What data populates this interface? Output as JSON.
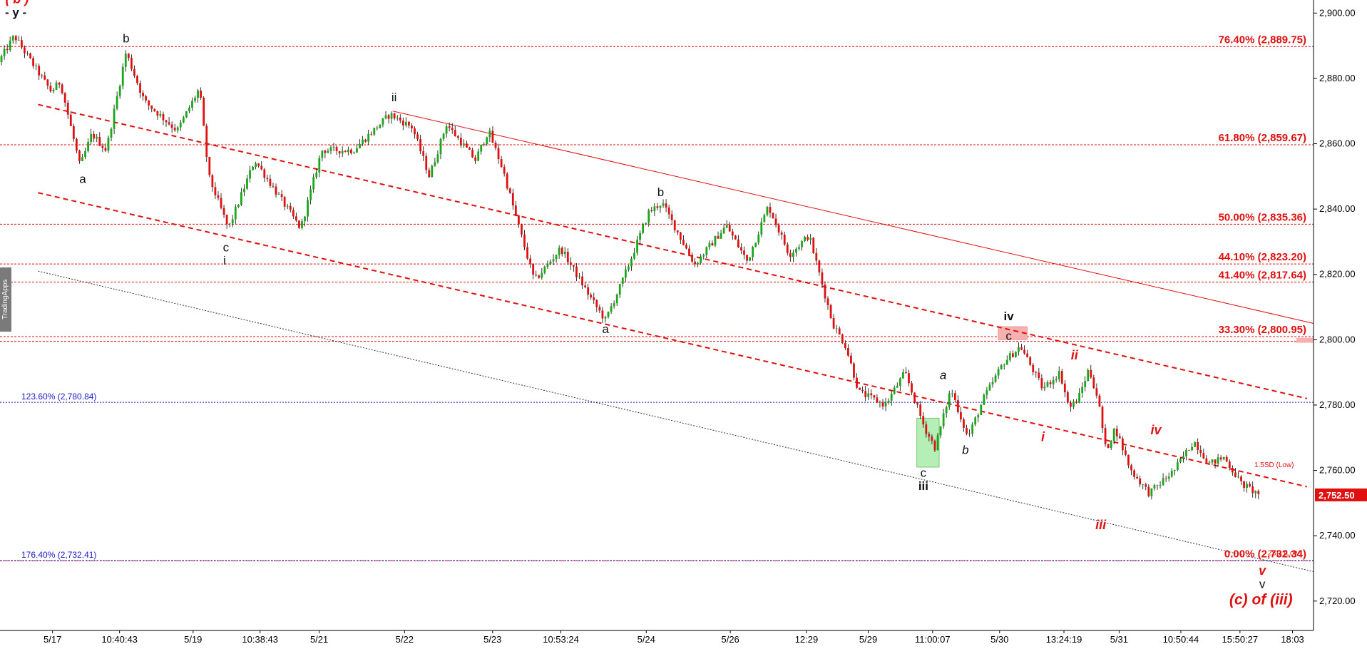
{
  "watermark": "TradingApps",
  "colors": {
    "bullish": "#1aa61a",
    "bearish": "#e01010",
    "wick": "#000000",
    "fib": "#e01010",
    "ext": "#1a1acc",
    "price_tag": "#e01010",
    "trendline_dotted": "#333333"
  },
  "chart_data": {
    "type": "candlestick",
    "instrument_price": "2,752.50",
    "ylim": [
      2711,
      2904
    ],
    "y_ticks": [
      "2,720.00",
      "2,740.00",
      "2,760.00",
      "2,780.00",
      "2,800.00",
      "2,820.00",
      "2,840.00",
      "2,860.00",
      "2,880.00",
      "2,900.00"
    ],
    "y_tick_values": [
      2720,
      2740,
      2760,
      2780,
      2800,
      2820,
      2840,
      2860,
      2880,
      2900
    ],
    "x_range": [
      0,
      100
    ],
    "x_ticks": [
      {
        "label": "5/17",
        "x": 4.0
      },
      {
        "label": "10:40:43",
        "x": 9.1
      },
      {
        "label": "5/19",
        "x": 14.7
      },
      {
        "label": "10:38:43",
        "x": 19.8
      },
      {
        "label": "5/21",
        "x": 24.3
      },
      {
        "label": "5/22",
        "x": 30.8
      },
      {
        "label": "5/23",
        "x": 37.5
      },
      {
        "label": "10:53:24",
        "x": 42.7
      },
      {
        "label": "5/24",
        "x": 49.2
      },
      {
        "label": "5/26",
        "x": 55.6
      },
      {
        "label": "12:29",
        "x": 61.4
      },
      {
        "label": "5/29",
        "x": 66.1
      },
      {
        "label": "11:00:07",
        "x": 71.0
      },
      {
        "label": "5/30",
        "x": 76.1
      },
      {
        "label": "13:24:19",
        "x": 81.0
      },
      {
        "label": "5/31",
        "x": 85.2
      },
      {
        "label": "10:50:44",
        "x": 89.9
      },
      {
        "label": "15:50:27",
        "x": 94.4
      },
      {
        "label": "18:03",
        "x": 98.4
      }
    ],
    "price_path": [
      [
        0,
        2885
      ],
      [
        1.2,
        2893
      ],
      [
        2.5,
        2885
      ],
      [
        4.0,
        2876
      ],
      [
        4.7,
        2879
      ],
      [
        6.2,
        2853
      ],
      [
        7.1,
        2863
      ],
      [
        8.2,
        2858
      ],
      [
        9.7,
        2888
      ],
      [
        11.1,
        2873
      ],
      [
        13.6,
        2864
      ],
      [
        15.3,
        2877
      ],
      [
        16.0,
        2850
      ],
      [
        17.5,
        2834
      ],
      [
        19.5,
        2855
      ],
      [
        22.0,
        2840
      ],
      [
        23.0,
        2834
      ],
      [
        24.6,
        2858
      ],
      [
        27.0,
        2858
      ],
      [
        29.8,
        2869
      ],
      [
        31.5,
        2865
      ],
      [
        32.8,
        2850
      ],
      [
        34.1,
        2866
      ],
      [
        36.3,
        2855
      ],
      [
        37.3,
        2864
      ],
      [
        38.4,
        2852
      ],
      [
        39.5,
        2836
      ],
      [
        40.8,
        2818
      ],
      [
        42.8,
        2828
      ],
      [
        45.2,
        2812
      ],
      [
        46.2,
        2806
      ],
      [
        47.5,
        2818
      ],
      [
        49.5,
        2839
      ],
      [
        50.5,
        2842
      ],
      [
        53.0,
        2823
      ],
      [
        55.4,
        2835
      ],
      [
        57.0,
        2824
      ],
      [
        58.6,
        2841
      ],
      [
        60.2,
        2826
      ],
      [
        61.7,
        2832
      ],
      [
        63.5,
        2805
      ],
      [
        64.5,
        2798
      ],
      [
        65.5,
        2784
      ],
      [
        67.5,
        2780
      ],
      [
        69.0,
        2790
      ],
      [
        70.5,
        2773
      ],
      [
        71.3,
        2767
      ],
      [
        72.5,
        2785
      ],
      [
        73.8,
        2770
      ],
      [
        75.0,
        2782
      ],
      [
        76.5,
        2793
      ],
      [
        77.8,
        2798
      ],
      [
        79.5,
        2785
      ],
      [
        80.8,
        2790
      ],
      [
        81.5,
        2779
      ],
      [
        82.2,
        2782
      ],
      [
        83.0,
        2791
      ],
      [
        83.7,
        2782
      ],
      [
        84.3,
        2766
      ],
      [
        85.0,
        2773
      ],
      [
        86.2,
        2760
      ],
      [
        87.6,
        2753
      ],
      [
        89.5,
        2760
      ],
      [
        91.0,
        2769
      ],
      [
        92.2,
        2762
      ],
      [
        93.3,
        2764
      ],
      [
        94.6,
        2756
      ],
      [
        95.8,
        2753
      ]
    ],
    "fib_levels": [
      {
        "label": "76.40% (2,889.75)",
        "value": 2889.75
      },
      {
        "label": "61.80% (2,859.67)",
        "value": 2859.67
      },
      {
        "label": "50.00% (2,835.36)",
        "value": 2835.36
      },
      {
        "label": "44.10% (2,823.20)",
        "value": 2823.2
      },
      {
        "label": "41.40% (2,817.64)",
        "value": 2817.64
      },
      {
        "label": "33.30% (2,800.95)",
        "value": 2800.95
      },
      {
        "label": "0.00% (2,732.34)",
        "value": 2732.34
      }
    ],
    "ext_levels": [
      {
        "label": "123.60% (2,780.84)",
        "value": 2780.84
      },
      {
        "label": "176.40% (2,732.41)",
        "value": 2732.41
      }
    ],
    "extra_dashed_level": 2799.5,
    "trendlines": [
      {
        "style": "dashed",
        "points": [
          [
            2.9,
            2872
          ],
          [
            99.5,
            2782
          ]
        ]
      },
      {
        "style": "dashed",
        "points": [
          [
            2.9,
            2845
          ],
          [
            99.5,
            2755
          ]
        ]
      },
      {
        "style": "solid",
        "points": [
          [
            29.9,
            2870
          ],
          [
            100,
            2805
          ]
        ]
      },
      {
        "style": "dotted",
        "points": [
          [
            2.9,
            2821
          ],
          [
            100,
            2729
          ]
        ]
      }
    ],
    "zones": [
      {
        "color": "#b6efb6",
        "x0": 69.8,
        "x1": 71.5,
        "y0": 2761,
        "y1": 2776
      },
      {
        "color": "#f7b0b0",
        "x0": 76.0,
        "x1": 78.2,
        "y0": 2800,
        "y1": 2804
      }
    ],
    "annotations": [
      {
        "text": "( b )",
        "x": 1.3,
        "y": 2903,
        "style": "wave-red"
      },
      {
        "text": "- y -",
        "x": 1.2,
        "y": 2899,
        "style": "blue"
      },
      {
        "text": "b",
        "x": 9.6,
        "y": 2891,
        "style": "wave-black"
      },
      {
        "text": "a",
        "x": 6.3,
        "y": 2848,
        "style": "wave-black"
      },
      {
        "text": "c",
        "x": 17.2,
        "y": 2827,
        "style": "wave-black"
      },
      {
        "text": "i",
        "x": 17.1,
        "y": 2823,
        "style": "wave-black"
      },
      {
        "text": "ii",
        "x": 30.0,
        "y": 2873,
        "style": "wave-black"
      },
      {
        "text": "b",
        "x": 50.3,
        "y": 2844,
        "style": "wave-black"
      },
      {
        "text": "a",
        "x": 46.1,
        "y": 2802,
        "style": "wave-black"
      },
      {
        "text": "a",
        "x": 71.8,
        "y": 2788,
        "style": "wave-black-italic"
      },
      {
        "text": "b",
        "x": 73.5,
        "y": 2765,
        "style": "wave-black-italic"
      },
      {
        "text": "c",
        "x": 70.3,
        "y": 2758,
        "style": "wave-black"
      },
      {
        "text": "iii",
        "x": 70.3,
        "y": 2754,
        "style": "wave-black-bold"
      },
      {
        "text": "iv",
        "x": 76.8,
        "y": 2806,
        "style": "wave-black-bold"
      },
      {
        "text": "c",
        "x": 76.8,
        "y": 2800,
        "style": "wave-black"
      },
      {
        "text": "ii",
        "x": 81.8,
        "y": 2794,
        "style": "wave-red"
      },
      {
        "text": "i",
        "x": 79.4,
        "y": 2769,
        "style": "wave-red"
      },
      {
        "text": "iii",
        "x": 83.8,
        "y": 2742,
        "style": "wave-red"
      },
      {
        "text": "iv",
        "x": 88.0,
        "y": 2771,
        "style": "wave-red"
      },
      {
        "text": "1.5SD (Low)",
        "x": 97.0,
        "y": 2761,
        "style": "small-red"
      },
      {
        "text": "2SD (Low)",
        "x": 97.8,
        "y": 2734,
        "style": "small-red"
      },
      {
        "text": "v",
        "x": 96.1,
        "y": 2728,
        "style": "wave-red"
      },
      {
        "text": "v",
        "x": 96.1,
        "y": 2724,
        "style": "wave-black"
      },
      {
        "text": "(c) of (iii)",
        "x": 96.0,
        "y": 2719,
        "style": "wave-red-big"
      }
    ]
  }
}
